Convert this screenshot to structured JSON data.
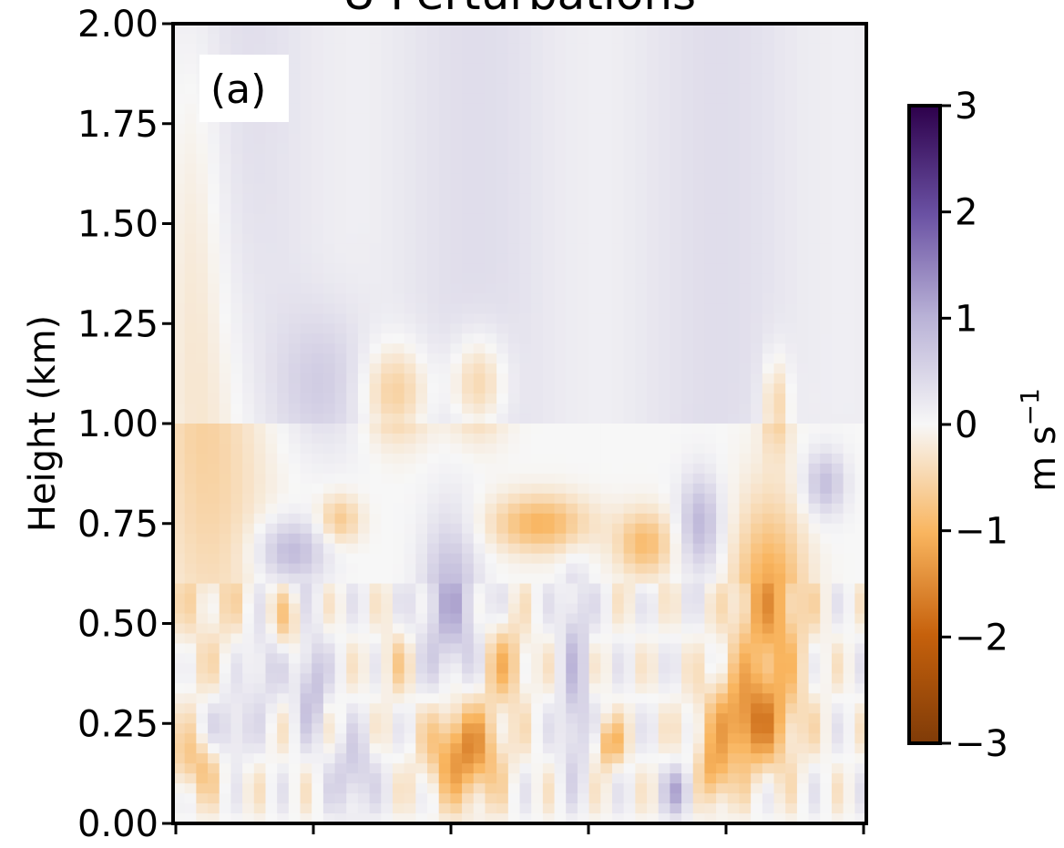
{
  "chart_data": {
    "type": "heatmap",
    "title": "U Perturbations",
    "panel_label": "(a)",
    "ylabel": "Height (km)",
    "ylim": [
      0.0,
      2.0
    ],
    "y_ticks": [
      0.0,
      0.25,
      0.5,
      0.75,
      1.0,
      1.25,
      1.5,
      1.75,
      2.0
    ],
    "y_tick_labels": [
      "0.00",
      "0.25",
      "0.50",
      "0.75",
      "1.00",
      "1.25",
      "1.50",
      "1.75",
      "2.00"
    ],
    "x_tick_count": 6,
    "colorbar": {
      "label_base": "m s",
      "label_exp": "−1",
      "vmin": -3,
      "vmax": 3,
      "ticks": [
        3,
        2,
        1,
        0,
        -1,
        -2,
        -3
      ],
      "tick_labels": [
        "3",
        "2",
        "1",
        "0",
        "−1",
        "−2",
        "−3"
      ],
      "colormap": "PuOr"
    },
    "field_summary": [
      {
        "region": "upper layer 1.0–2.0 km",
        "perturbation": "weak, mostly slightly positive (pale purple) with weak negative streaks"
      },
      {
        "region": "middle layer 0.5–1.0 km",
        "perturbation": "alternating negative (orange, ~-1) and positive (purple, ~+1) bands"
      },
      {
        "region": "lower layer 0–0.5 km",
        "perturbation": "strong mixed structures, negative up to about -1.5 near 0.1–0.4 km"
      }
    ]
  }
}
